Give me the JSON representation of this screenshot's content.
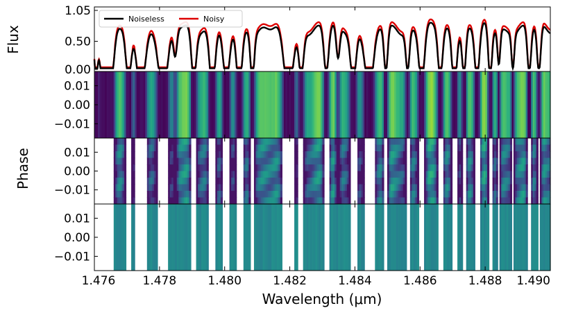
{
  "chart_data": {
    "type": "line",
    "xlabel": "Wavelength (μm)",
    "xlim": [
      1.476,
      1.49
    ],
    "x_ticks": [
      "1.476",
      "1.478",
      "1.480",
      "1.482",
      "1.484",
      "1.486",
      "1.488",
      "1.490"
    ],
    "panels": [
      {
        "name": "flux",
        "type": "line",
        "ylabel": "Flux",
        "ylim": [
          0.0,
          1.05
        ],
        "y_ticks": [
          "1.05",
          "0.50",
          "0.00"
        ],
        "legend": [
          "Noiseless",
          "Noisy"
        ],
        "series": [
          {
            "name": "Noiseless",
            "color": "#000000",
            "offset": 0.0
          },
          {
            "name": "Noisy",
            "color": "#dd0000",
            "offset": 0.06
          }
        ],
        "lines": [
          {
            "center": 1.47605,
            "width": 8e-05,
            "depth": 0.8
          },
          {
            "center": 1.47625,
            "width": 0.0001,
            "depth": 0.9
          },
          {
            "center": 1.4765,
            "width": 0.00014,
            "depth": 1.05
          },
          {
            "center": 1.47705,
            "width": 0.00012,
            "depth": 0.95
          },
          {
            "center": 1.47742,
            "width": 0.00018,
            "depth": 1.05
          },
          {
            "center": 1.47812,
            "width": 0.0002,
            "depth": 1.1
          },
          {
            "center": 1.47848,
            "width": 8e-05,
            "depth": 0.5
          },
          {
            "center": 1.47905,
            "width": 0.0001,
            "depth": 0.85
          },
          {
            "center": 1.47962,
            "width": 0.00012,
            "depth": 1.0
          },
          {
            "center": 1.48005,
            "width": 0.00014,
            "depth": 1.05
          },
          {
            "center": 1.48045,
            "width": 0.00012,
            "depth": 1.05
          },
          {
            "center": 1.48085,
            "width": 8e-05,
            "depth": 0.8
          },
          {
            "center": 1.48195,
            "width": 0.0002,
            "depth": 1.1
          },
          {
            "center": 1.48235,
            "width": 0.0001,
            "depth": 0.8
          },
          {
            "center": 1.48312,
            "width": 0.0001,
            "depth": 0.8
          },
          {
            "center": 1.48348,
            "width": 8e-05,
            "depth": 0.6
          },
          {
            "center": 1.48395,
            "width": 0.00012,
            "depth": 0.9
          },
          {
            "center": 1.48445,
            "width": 0.00018,
            "depth": 1.1
          },
          {
            "center": 1.48495,
            "width": 8e-05,
            "depth": 0.8
          },
          {
            "center": 1.48562,
            "width": 8e-05,
            "depth": 0.7
          },
          {
            "center": 1.48605,
            "width": 0.00012,
            "depth": 0.95
          },
          {
            "center": 1.48662,
            "width": 0.0001,
            "depth": 0.85
          },
          {
            "center": 1.48705,
            "width": 0.0001,
            "depth": 0.95
          },
          {
            "center": 1.48735,
            "width": 8e-05,
            "depth": 0.8
          },
          {
            "center": 1.48775,
            "width": 0.0001,
            "depth": 0.9
          },
          {
            "center": 1.48815,
            "width": 8e-05,
            "depth": 0.9
          },
          {
            "center": 1.48842,
            "width": 6e-05,
            "depth": 0.6
          },
          {
            "center": 1.48885,
            "width": 6e-05,
            "depth": 0.6
          },
          {
            "center": 1.48935,
            "width": 8e-05,
            "depth": 0.8
          },
          {
            "center": 1.48965,
            "width": 8e-05,
            "depth": 0.85
          }
        ]
      },
      {
        "name": "phase-a",
        "type": "heatmap",
        "ylabel": "",
        "ylim": [
          -0.0175,
          0.0175
        ],
        "y_ticks": [
          "0.01",
          "0.00",
          "−0.01"
        ],
        "mode": "full",
        "colormap": "viridis"
      },
      {
        "name": "phase-b",
        "type": "heatmap",
        "ylabel": "Phase",
        "ylim": [
          -0.0175,
          0.0175
        ],
        "y_ticks": [
          "0.01",
          "0.00",
          "−0.01"
        ],
        "mode": "masked",
        "colormap": "viridis"
      },
      {
        "name": "phase-c",
        "type": "heatmap",
        "ylabel": "",
        "ylim": [
          -0.0175,
          0.0175
        ],
        "y_ticks": [
          "0.01",
          "0.00",
          "−0.01"
        ],
        "mode": "noise",
        "colormap": "viridis"
      }
    ]
  }
}
